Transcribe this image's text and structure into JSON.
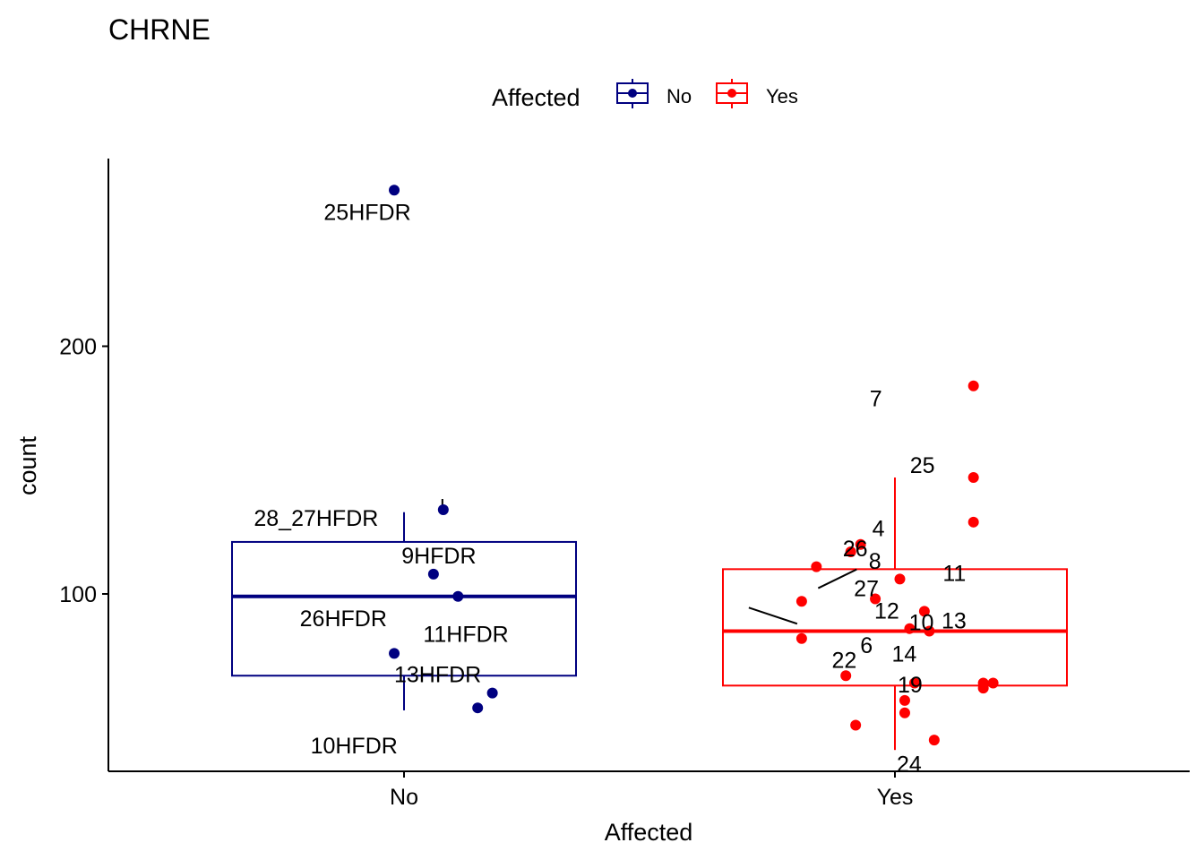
{
  "chart_data": {
    "type": "box",
    "title": "CHRNE",
    "xlabel": "Affected",
    "ylabel": "count",
    "categories": [
      "No",
      "Yes"
    ],
    "y_ticks": [
      100,
      200
    ],
    "ylim": [
      32,
      278
    ],
    "legend": {
      "title": "Affected",
      "position": "top",
      "entries": [
        {
          "label": "No",
          "color": "#000080"
        },
        {
          "label": "Yes",
          "color": "#ff0000"
        }
      ]
    },
    "boxes": [
      {
        "category": "No",
        "color": "#000080",
        "lower_whisker": 53,
        "q1": 67,
        "median": 99,
        "q3": 121,
        "upper_whisker": 133
      },
      {
        "category": "Yes",
        "color": "#ff0000",
        "lower_whisker": 37,
        "q1": 63,
        "median": 85,
        "q3": 110,
        "upper_whisker": 147
      }
    ],
    "series": [
      {
        "name": "No",
        "color": "#000080",
        "points": [
          {
            "jitter": -0.02,
            "y": 263,
            "label": "25HFDR"
          },
          {
            "jitter": 0.08,
            "y": 134,
            "label": "28_27HFDR"
          },
          {
            "jitter": 0.06,
            "y": 108,
            "label": "9HFDR"
          },
          {
            "jitter": 0.11,
            "y": 99,
            "label": "26HFDR"
          },
          {
            "jitter": -0.02,
            "y": 76,
            "label": "11HFDR"
          },
          {
            "jitter": 0.18,
            "y": 60,
            "label": "13HFDR"
          },
          {
            "jitter": 0.15,
            "y": 54,
            "label": "10HFDR"
          }
        ]
      },
      {
        "name": "Yes",
        "color": "#ff0000",
        "points": [
          {
            "jitter": 0.16,
            "y": 184,
            "label": "7"
          },
          {
            "jitter": 0.16,
            "y": 147,
            "label": "25"
          },
          {
            "jitter": 0.16,
            "y": 129,
            "label": "8"
          },
          {
            "jitter": -0.07,
            "y": 120,
            "label": "4"
          },
          {
            "jitter": -0.09,
            "y": 117,
            "label": "26"
          },
          {
            "jitter": -0.16,
            "y": 111,
            "label": "11"
          },
          {
            "jitter": 0.01,
            "y": 106,
            "label": "10"
          },
          {
            "jitter": -0.04,
            "y": 98,
            "label": "27"
          },
          {
            "jitter": -0.19,
            "y": 97,
            "label": "13"
          },
          {
            "jitter": 0.06,
            "y": 93,
            "label": "12"
          },
          {
            "jitter": 0.03,
            "y": 86,
            "label": "14"
          },
          {
            "jitter": 0.07,
            "y": 85,
            "label": "22"
          },
          {
            "jitter": -0.19,
            "y": 82,
            "label": "19"
          },
          {
            "jitter": -0.1,
            "y": 67,
            "label": "6"
          },
          {
            "jitter": 0.04,
            "y": 64,
            "label": "24"
          },
          {
            "jitter": 0.18,
            "y": 64,
            "label": ""
          },
          {
            "jitter": 0.2,
            "y": 64,
            "label": ""
          },
          {
            "jitter": 0.18,
            "y": 62,
            "label": ""
          },
          {
            "jitter": 0.02,
            "y": 57,
            "label": ""
          },
          {
            "jitter": 0.02,
            "y": 52,
            "label": ""
          },
          {
            "jitter": -0.08,
            "y": 47,
            "label": ""
          },
          {
            "jitter": 0.08,
            "y": 41,
            "label": ""
          }
        ]
      }
    ]
  }
}
